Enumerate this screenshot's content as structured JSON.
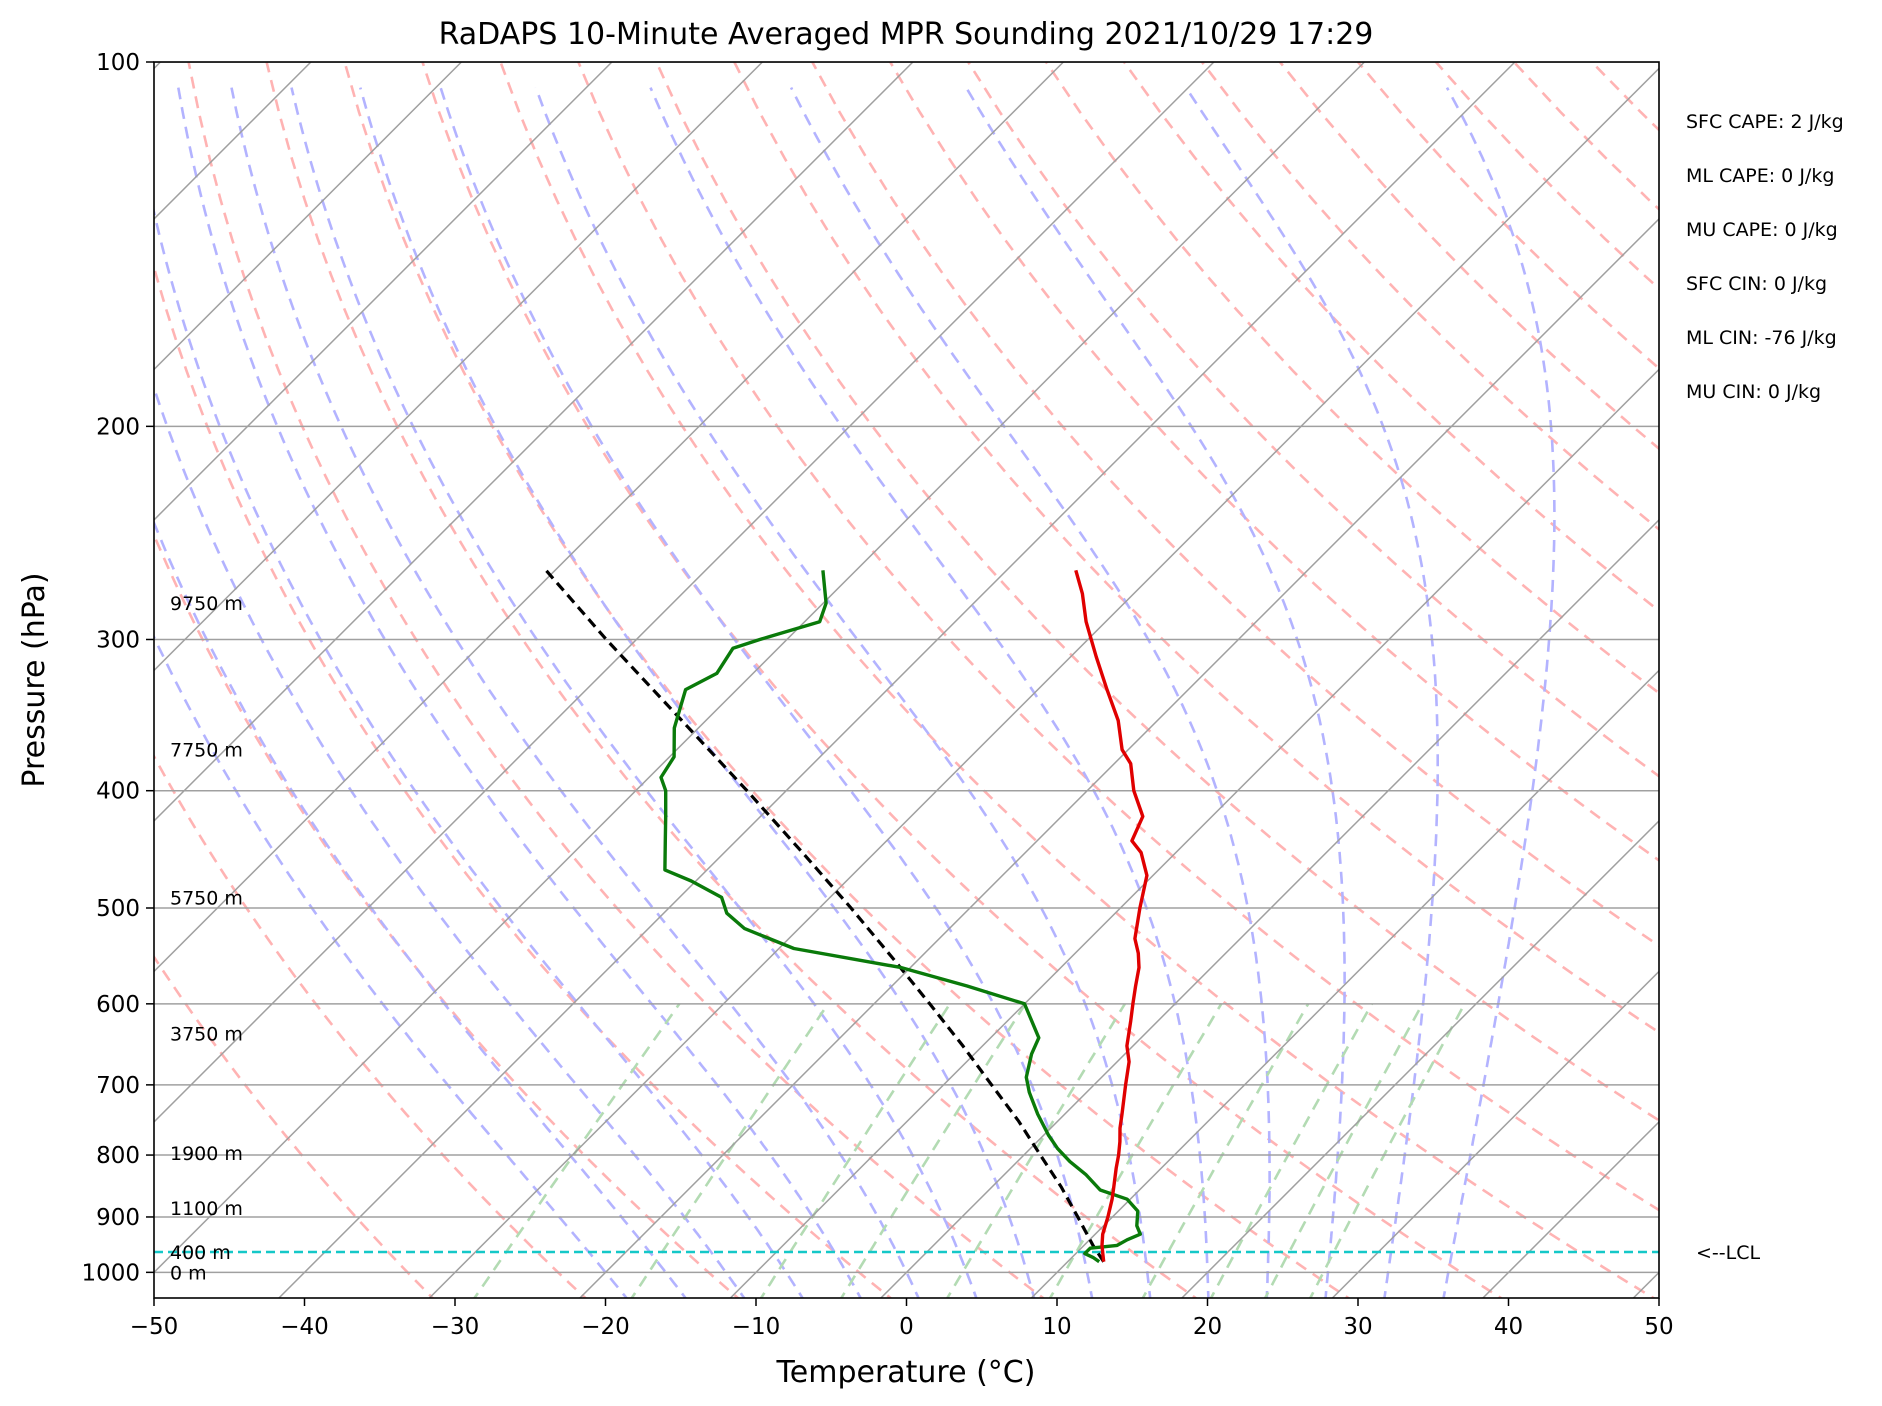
{
  "chart_data": {
    "type": "skew-t",
    "title": "RaDAPS 10-Minute Averaged MPR Sounding 2021/10/29 17:29",
    "xlabel": "Temperature (°C)",
    "ylabel": "Pressure (hPa)",
    "xlim": [
      -50,
      50
    ],
    "ylim": [
      1050,
      100
    ],
    "x_ticks": [
      "−50",
      "−40",
      "−30",
      "−20",
      "−10",
      "0",
      "10",
      "20",
      "30",
      "40",
      "50"
    ],
    "y_ticks": [
      "100",
      "200",
      "300",
      "400",
      "500",
      "600",
      "700",
      "800",
      "900",
      "1000"
    ],
    "y_tick_values": [
      100,
      200,
      300,
      400,
      500,
      600,
      700,
      800,
      900,
      1000
    ],
    "isobars": [
      100,
      200,
      300,
      400,
      500,
      600,
      700,
      800,
      900,
      1000
    ],
    "temperature_profile": {
      "color": "#e00000",
      "pressure": [
        980,
        965,
        950,
        930,
        900,
        870,
        850,
        820,
        800,
        780,
        760,
        740,
        700,
        670,
        650,
        620,
        600,
        580,
        560,
        545,
        530,
        500,
        470,
        450,
        440,
        420,
        400,
        380,
        370,
        350,
        330,
        310,
        290,
        275,
        263
      ],
      "temperature": [
        12.4,
        11.8,
        11.2,
        10.5,
        9.7,
        8.8,
        8.1,
        7.0,
        6.3,
        5.5,
        4.6,
        3.8,
        2.1,
        0.8,
        -0.4,
        -1.8,
        -2.8,
        -3.8,
        -4.8,
        -5.8,
        -7.0,
        -8.7,
        -10.4,
        -12.3,
        -13.7,
        -14.6,
        -16.9,
        -18.9,
        -20.4,
        -22.6,
        -25.4,
        -28.3,
        -31.3,
        -33.4,
        -35.4
      ]
    },
    "dewpoint_profile": {
      "color": "#0a7a0a",
      "pressure": [
        980,
        972,
        965,
        955,
        950,
        940,
        930,
        915,
        890,
        870,
        855,
        830,
        810,
        790,
        770,
        740,
        710,
        690,
        660,
        640,
        600,
        580,
        560,
        540,
        520,
        505,
        490,
        475,
        465,
        440,
        420,
        400,
        390,
        375,
        355,
        330,
        320,
        305,
        300,
        290,
        280,
        263
      ],
      "temperature": [
        12.1,
        11.4,
        10.6,
        10.6,
        12.2,
        12.5,
        13.0,
        12.2,
        11.3,
        9.8,
        7.4,
        5.4,
        3.5,
        1.8,
        0.3,
        -1.8,
        -3.8,
        -5.0,
        -6.2,
        -6.8,
        -10.0,
        -15.0,
        -20.6,
        -29.0,
        -33.6,
        -35.8,
        -37.2,
        -40.3,
        -42.8,
        -44.7,
        -46.3,
        -48.0,
        -49.2,
        -49.7,
        -51.6,
        -53.4,
        -52.4,
        -53.0,
        -51.8,
        -49.0,
        -49.8,
        -52.2
      ]
    },
    "parcel_profile": {
      "color": "#000000",
      "pressure": [
        980,
        950,
        900,
        850,
        800,
        750,
        700,
        650,
        600,
        550,
        500,
        450,
        400,
        350,
        300,
        263
      ],
      "temperature": [
        12.4,
        10.6,
        7.7,
        4.6,
        1.1,
        -2.6,
        -6.8,
        -11.3,
        -16.3,
        -21.8,
        -27.9,
        -34.8,
        -42.6,
        -51.6,
        -62.0,
        -70.6
      ]
    },
    "lcl_pressure": 962,
    "lcl_label": "<--LCL",
    "height_labels": [
      {
        "label": "9750 m",
        "pressure": 280
      },
      {
        "label": "7750 m",
        "pressure": 370
      },
      {
        "label": "5750 m",
        "pressure": 490
      },
      {
        "label": "3750 m",
        "pressure": 635
      },
      {
        "label": "1900 m",
        "pressure": 797
      },
      {
        "label": "1100 m",
        "pressure": 885
      },
      {
        "label": "400 m",
        "pressure": 962
      },
      {
        "label": "0 m",
        "pressure": 1000
      }
    ],
    "indices": [
      "SFC CAPE: 2 J/kg",
      "ML CAPE: 0 J/kg",
      "MU CAPE: 0 J/kg",
      "SFC CIN: 0 J/kg",
      "ML CIN: -76 J/kg",
      "MU CIN: 0 J/kg"
    ],
    "background": {
      "isotherms_color": "#a0a0a0",
      "dry_adiabats_color": "#ffb3b3",
      "moist_adiabats_color": "#b3b3ff",
      "mixing_ratio_color": "#b3dbb3",
      "lcl_line_color": "#14c8c8",
      "grid": true
    }
  }
}
